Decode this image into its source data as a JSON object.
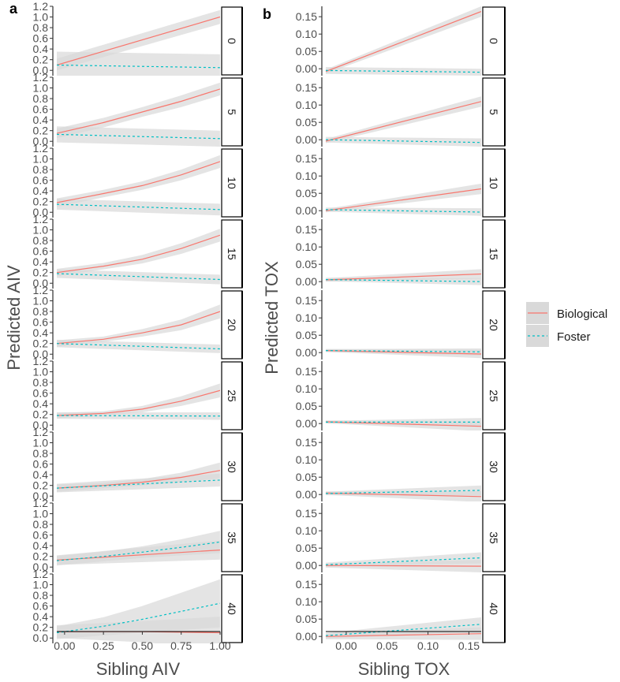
{
  "chart_data": [
    {
      "type": "line",
      "tag": "a",
      "xlabel": "Sibling AIV",
      "ylabel": "Predicted AIV",
      "xlim": [
        -0.05,
        1.0
      ],
      "ylim": [
        -0.1,
        1.2
      ],
      "x_ticks": [
        0.0,
        0.25,
        0.5,
        0.75,
        1.0
      ],
      "x_tick_labels": [
        "0.00",
        "0.25",
        "0.50",
        "0.75",
        "1.00"
      ],
      "y_ticks": [
        0.0,
        0.2,
        0.4,
        0.6,
        0.8,
        1.0,
        1.2
      ],
      "y_tick_labels": [
        "0.0",
        "0.2",
        "0.4",
        "0.6",
        "0.8",
        "1.0",
        "1.2"
      ],
      "facets": [
        {
          "label": "0",
          "series": [
            {
              "name": "Biological",
              "x": [
                -0.05,
                1.0
              ],
              "y": [
                0.1,
                1.0
              ],
              "lo": [
                0.0,
                0.87
              ],
              "hi": [
                0.22,
                1.13
              ]
            },
            {
              "name": "Foster",
              "x": [
                -0.05,
                1.0
              ],
              "y": [
                0.1,
                0.05
              ],
              "lo": [
                -0.15,
                -0.15
              ],
              "hi": [
                0.35,
                0.3
              ]
            }
          ]
        },
        {
          "label": "5",
          "series": [
            {
              "name": "Biological",
              "x": [
                -0.05,
                0.25,
                0.5,
                0.75,
                1.0
              ],
              "y": [
                0.15,
                0.35,
                0.55,
                0.75,
                0.98
              ],
              "lo": [
                0.06,
                0.26,
                0.46,
                0.64,
                0.86
              ],
              "hi": [
                0.24,
                0.44,
                0.64,
                0.86,
                1.1
              ]
            },
            {
              "name": "Foster",
              "x": [
                -0.05,
                1.0
              ],
              "y": [
                0.13,
                0.05
              ],
              "lo": [
                -0.02,
                -0.1
              ],
              "hi": [
                0.28,
                0.2
              ]
            }
          ]
        },
        {
          "label": "10",
          "series": [
            {
              "name": "Biological",
              "x": [
                -0.05,
                0.25,
                0.5,
                0.75,
                1.0
              ],
              "y": [
                0.18,
                0.35,
                0.5,
                0.7,
                0.95
              ],
              "lo": [
                0.1,
                0.28,
                0.42,
                0.6,
                0.83
              ],
              "hi": [
                0.26,
                0.42,
                0.58,
                0.8,
                1.07
              ]
            },
            {
              "name": "Foster",
              "x": [
                -0.05,
                1.0
              ],
              "y": [
                0.15,
                0.05
              ],
              "lo": [
                0.05,
                -0.06
              ],
              "hi": [
                0.25,
                0.16
              ]
            }
          ]
        },
        {
          "label": "15",
          "series": [
            {
              "name": "Biological",
              "x": [
                -0.05,
                0.25,
                0.5,
                0.75,
                1.0
              ],
              "y": [
                0.2,
                0.32,
                0.45,
                0.65,
                0.9
              ],
              "lo": [
                0.13,
                0.26,
                0.37,
                0.55,
                0.78
              ],
              "hi": [
                0.27,
                0.38,
                0.53,
                0.75,
                1.02
              ]
            },
            {
              "name": "Foster",
              "x": [
                -0.05,
                1.0
              ],
              "y": [
                0.18,
                0.07
              ],
              "lo": [
                0.1,
                -0.02
              ],
              "hi": [
                0.26,
                0.16
              ]
            }
          ]
        },
        {
          "label": "20",
          "series": [
            {
              "name": "Biological",
              "x": [
                -0.05,
                0.25,
                0.5,
                0.75,
                1.0
              ],
              "y": [
                0.2,
                0.28,
                0.4,
                0.55,
                0.8
              ],
              "lo": [
                0.14,
                0.23,
                0.33,
                0.45,
                0.67
              ],
              "hi": [
                0.26,
                0.33,
                0.47,
                0.65,
                0.93
              ]
            },
            {
              "name": "Foster",
              "x": [
                -0.05,
                1.0
              ],
              "y": [
                0.2,
                0.1
              ],
              "lo": [
                0.13,
                0.02
              ],
              "hi": [
                0.27,
                0.18
              ]
            }
          ]
        },
        {
          "label": "25",
          "series": [
            {
              "name": "Biological",
              "x": [
                -0.05,
                0.25,
                0.5,
                0.75,
                1.0
              ],
              "y": [
                0.18,
                0.22,
                0.3,
                0.45,
                0.65
              ],
              "lo": [
                0.13,
                0.18,
                0.24,
                0.36,
                0.52
              ],
              "hi": [
                0.23,
                0.26,
                0.36,
                0.54,
                0.78
              ]
            },
            {
              "name": "Foster",
              "x": [
                -0.05,
                1.0
              ],
              "y": [
                0.18,
                0.17
              ],
              "lo": [
                0.12,
                0.1
              ],
              "hi": [
                0.24,
                0.24
              ]
            }
          ]
        },
        {
          "label": "30",
          "series": [
            {
              "name": "Biological",
              "x": [
                -0.05,
                0.25,
                0.5,
                0.75,
                1.0
              ],
              "y": [
                0.15,
                0.2,
                0.26,
                0.35,
                0.48
              ],
              "lo": [
                0.08,
                0.15,
                0.2,
                0.26,
                0.33
              ],
              "hi": [
                0.22,
                0.25,
                0.32,
                0.44,
                0.63
              ]
            },
            {
              "name": "Foster",
              "x": [
                -0.05,
                1.0
              ],
              "y": [
                0.15,
                0.3
              ],
              "lo": [
                0.07,
                0.18
              ],
              "hi": [
                0.23,
                0.42
              ]
            }
          ]
        },
        {
          "label": "35",
          "series": [
            {
              "name": "Biological",
              "x": [
                -0.05,
                1.0
              ],
              "y": [
                0.13,
                0.32
              ],
              "lo": [
                0.04,
                0.14
              ],
              "hi": [
                0.22,
                0.5
              ]
            },
            {
              "name": "Foster",
              "x": [
                -0.05,
                0.25,
                0.5,
                0.75,
                1.0
              ],
              "y": [
                0.12,
                0.2,
                0.28,
                0.37,
                0.47
              ],
              "lo": [
                0.03,
                0.11,
                0.17,
                0.22,
                0.26
              ],
              "hi": [
                0.21,
                0.29,
                0.39,
                0.52,
                0.68
              ]
            }
          ]
        },
        {
          "label": "40",
          "series": [
            {
              "name": "Biological",
              "x": [
                -0.05,
                0.5,
                1.0
              ],
              "y": [
                0.12,
                0.12,
                0.1
              ],
              "lo": [
                0.0,
                -0.08,
                -0.2
              ],
              "hi": [
                0.24,
                0.32,
                0.4
              ]
            },
            {
              "name": "Foster",
              "x": [
                -0.05,
                0.25,
                0.5,
                0.75,
                1.0
              ],
              "y": [
                0.1,
                0.22,
                0.35,
                0.5,
                0.65
              ],
              "lo": [
                -0.02,
                0.05,
                0.1,
                0.15,
                0.2
              ],
              "hi": [
                0.22,
                0.39,
                0.6,
                0.85,
                1.1
              ]
            }
          ]
        }
      ]
    },
    {
      "type": "line",
      "tag": "b",
      "xlabel": "Sibling TOX",
      "ylabel": "Predicted TOX",
      "xlim": [
        -0.025,
        0.165
      ],
      "ylim": [
        -0.02,
        0.18
      ],
      "x_ticks": [
        0.0,
        0.05,
        0.1,
        0.15
      ],
      "x_tick_labels": [
        "0.00",
        "0.05",
        "0.10",
        "0.15"
      ],
      "y_ticks": [
        0.0,
        0.05,
        0.1,
        0.15
      ],
      "y_tick_labels": [
        "0.00",
        "0.05",
        "0.10",
        "0.15"
      ],
      "facets": [
        {
          "label": "0",
          "series": [
            {
              "name": "Biological",
              "x": [
                -0.025,
                0.165
              ],
              "y": [
                -0.008,
                0.165
              ],
              "lo": [
                -0.014,
                0.15
              ],
              "hi": [
                -0.002,
                0.18
              ]
            },
            {
              "name": "Foster",
              "x": [
                -0.025,
                0.165
              ],
              "y": [
                -0.005,
                -0.01
              ],
              "lo": [
                -0.015,
                -0.02
              ],
              "hi": [
                0.005,
                0.0
              ]
            }
          ]
        },
        {
          "label": "5",
          "series": [
            {
              "name": "Biological",
              "x": [
                -0.025,
                0.165
              ],
              "y": [
                -0.004,
                0.11
              ],
              "lo": [
                -0.01,
                0.095
              ],
              "hi": [
                0.002,
                0.125
              ]
            },
            {
              "name": "Foster",
              "x": [
                -0.025,
                0.165
              ],
              "y": [
                0.0,
                -0.008
              ],
              "lo": [
                -0.008,
                -0.02
              ],
              "hi": [
                0.008,
                0.004
              ]
            }
          ]
        },
        {
          "label": "10",
          "series": [
            {
              "name": "Biological",
              "x": [
                -0.025,
                0.165
              ],
              "y": [
                0.0,
                0.063
              ],
              "lo": [
                -0.005,
                0.048
              ],
              "hi": [
                0.005,
                0.078
              ]
            },
            {
              "name": "Foster",
              "x": [
                -0.025,
                0.165
              ],
              "y": [
                0.003,
                -0.004
              ],
              "lo": [
                -0.003,
                -0.015
              ],
              "hi": [
                0.009,
                0.007
              ]
            }
          ]
        },
        {
          "label": "15",
          "series": [
            {
              "name": "Biological",
              "x": [
                -0.025,
                0.165
              ],
              "y": [
                0.005,
                0.022
              ],
              "lo": [
                0.0,
                0.008
              ],
              "hi": [
                0.01,
                0.036
              ]
            },
            {
              "name": "Foster",
              "x": [
                -0.025,
                0.165
              ],
              "y": [
                0.006,
                0.0
              ],
              "lo": [
                0.001,
                -0.01
              ],
              "hi": [
                0.011,
                0.01
              ]
            }
          ]
        },
        {
          "label": "20",
          "series": [
            {
              "name": "Biological",
              "x": [
                -0.025,
                0.165
              ],
              "y": [
                0.006,
                -0.004
              ],
              "lo": [
                0.002,
                -0.016
              ],
              "hi": [
                0.01,
                0.008
              ]
            },
            {
              "name": "Foster",
              "x": [
                -0.025,
                0.165
              ],
              "y": [
                0.006,
                0.002
              ],
              "lo": [
                0.002,
                -0.008
              ],
              "hi": [
                0.01,
                0.012
              ]
            }
          ]
        },
        {
          "label": "25",
          "series": [
            {
              "name": "Biological",
              "x": [
                -0.025,
                0.165
              ],
              "y": [
                0.005,
                -0.008
              ],
              "lo": [
                0.001,
                -0.022
              ],
              "hi": [
                0.009,
                0.006
              ]
            },
            {
              "name": "Foster",
              "x": [
                -0.025,
                0.165
              ],
              "y": [
                0.004,
                0.004
              ],
              "lo": [
                0.0,
                -0.008
              ],
              "hi": [
                0.008,
                0.016
              ]
            }
          ]
        },
        {
          "label": "30",
          "series": [
            {
              "name": "Biological",
              "x": [
                -0.025,
                0.165
              ],
              "y": [
                0.004,
                -0.006
              ],
              "lo": [
                -0.001,
                -0.022
              ],
              "hi": [
                0.009,
                0.01
              ]
            },
            {
              "name": "Foster",
              "x": [
                -0.025,
                0.165
              ],
              "y": [
                0.003,
                0.012
              ],
              "lo": [
                -0.002,
                -0.002
              ],
              "hi": [
                0.008,
                0.026
              ]
            }
          ]
        },
        {
          "label": "35",
          "series": [
            {
              "name": "Biological",
              "x": [
                -0.025,
                0.165
              ],
              "y": [
                0.0,
                -0.002
              ],
              "lo": [
                -0.006,
                -0.02
              ],
              "hi": [
                0.006,
                0.016
              ]
            },
            {
              "name": "Foster",
              "x": [
                -0.025,
                0.165
              ],
              "y": [
                0.002,
                0.022
              ],
              "lo": [
                -0.004,
                0.006
              ],
              "hi": [
                0.008,
                0.038
              ]
            }
          ]
        },
        {
          "label": "40",
          "series": [
            {
              "name": "Biological",
              "x": [
                -0.025,
                0.165
              ],
              "y": [
                0.0,
                0.008
              ],
              "lo": [
                -0.008,
                -0.01
              ],
              "hi": [
                0.008,
                0.026
              ]
            },
            {
              "name": "Foster",
              "x": [
                -0.025,
                0.165
              ],
              "y": [
                0.002,
                0.035
              ],
              "lo": [
                -0.006,
                0.015
              ],
              "hi": [
                0.01,
                0.055
              ]
            }
          ]
        }
      ]
    }
  ],
  "legend": {
    "position": "right",
    "entries": [
      {
        "name": "Biological",
        "label": "Biological",
        "color": "#f8766d",
        "dash": "solid"
      },
      {
        "name": "Foster",
        "label": "Foster",
        "color": "#00bfc4",
        "dash": "dotted"
      }
    ]
  },
  "ribbon_color": "#d9d9d9"
}
